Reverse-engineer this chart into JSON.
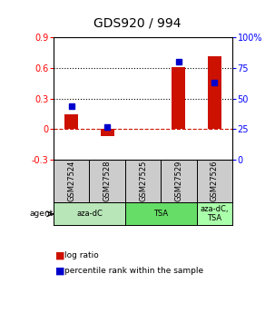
{
  "title": "GDS920 / 994",
  "samples": [
    "GSM27524",
    "GSM27528",
    "GSM27525",
    "GSM27529",
    "GSM27526"
  ],
  "log_ratios": [
    0.15,
    -0.07,
    0.0,
    0.61,
    0.72
  ],
  "percentile_ranks": [
    0.44,
    0.27,
    null,
    0.8,
    0.635
  ],
  "agent_groups": [
    {
      "label": "aza-dC",
      "span": [
        0,
        2
      ],
      "color": "#b8e6b8"
    },
    {
      "label": "TSA",
      "span": [
        2,
        4
      ],
      "color": "#66dd66"
    },
    {
      "label": "aza-dC,\nTSA",
      "span": [
        4,
        5
      ],
      "color": "#aaffaa"
    }
  ],
  "bar_color": "#cc1100",
  "dot_color": "#0000cc",
  "ylim_left": [
    -0.3,
    0.9
  ],
  "ylim_right": [
    0.0,
    1.0
  ],
  "yticks_left": [
    -0.3,
    0.0,
    0.3,
    0.6,
    0.9
  ],
  "ytick_labels_left": [
    "-0.3",
    "0",
    "0.3",
    "0.6",
    "0.9"
  ],
  "yticks_right": [
    0.0,
    0.25,
    0.5,
    0.75,
    1.0
  ],
  "ytick_labels_right": [
    "0",
    "25",
    "50",
    "75",
    "100%"
  ],
  "hlines": [
    0.3,
    0.6
  ],
  "zero_line": 0.0,
  "bg_color": "#ffffff",
  "sample_box_color": "#cccccc",
  "title_fontsize": 10,
  "tick_fontsize": 7,
  "label_fontsize": 7
}
